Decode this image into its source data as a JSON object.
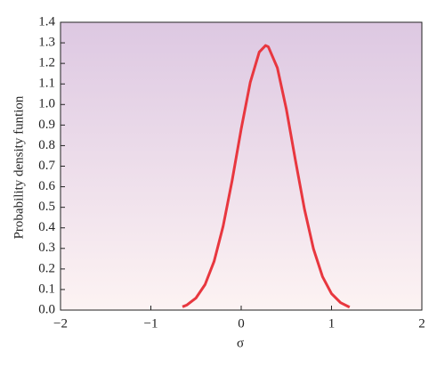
{
  "chart_data": {
    "type": "line",
    "x_label": "σ",
    "y_label": "Probability density funtion",
    "x": [
      -0.65,
      -0.6,
      -0.5,
      -0.4,
      -0.3,
      -0.2,
      -0.1,
      0,
      0.1,
      0.2,
      0.27,
      0.3,
      0.4,
      0.5,
      0.6,
      0.7,
      0.8,
      0.9,
      1.0,
      1.1,
      1.2
    ],
    "series": [
      {
        "color": "#e8373f",
        "values": [
          0.016,
          0.025,
          0.059,
          0.124,
          0.237,
          0.408,
          0.631,
          0.881,
          1.107,
          1.255,
          1.287,
          1.281,
          1.179,
          0.977,
          0.73,
          0.492,
          0.298,
          0.163,
          0.08,
          0.036,
          0.014
        ]
      }
    ],
    "xlim": [
      -2,
      2
    ],
    "xticks": [
      {
        "value": -2,
        "label": "−2"
      },
      {
        "value": -1,
        "label": "−1"
      },
      0,
      1,
      2
    ],
    "ylim": [
      0,
      1.4
    ],
    "yticks": [
      {
        "value": 0,
        "label": "0.0"
      },
      0.1,
      0.2,
      0.3,
      0.4,
      0.5,
      0.6,
      0.7,
      0.8,
      0.9,
      {
        "value": 1,
        "label": "1.0"
      },
      1.1,
      1.2,
      1.3,
      1.4
    ]
  }
}
